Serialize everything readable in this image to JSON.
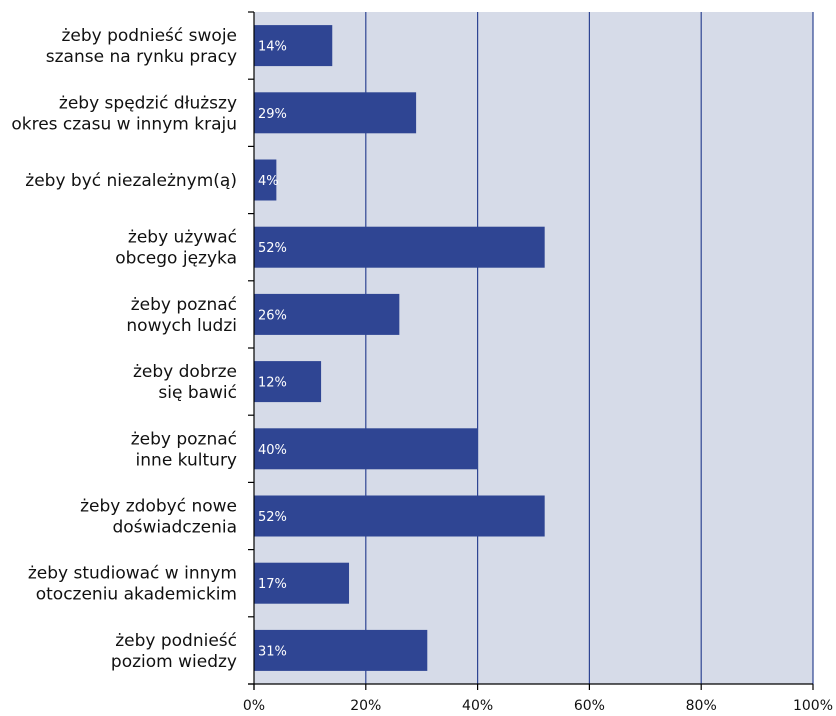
{
  "chart_data": {
    "type": "bar",
    "orientation": "horizontal",
    "categories": [
      [
        "żeby podnieść swoje",
        "szanse na rynku pracy"
      ],
      [
        "żeby spędzić dłuższy",
        "okres czasu w innym kraju"
      ],
      [
        "żeby być niezależnym(ą)"
      ],
      [
        "żeby używać",
        "obcego języka"
      ],
      [
        "żeby poznać",
        "nowych ludzi"
      ],
      [
        "żeby dobrze",
        "się bawić"
      ],
      [
        "żeby poznać",
        "inne kultury"
      ],
      [
        "żeby zdobyć nowe",
        "doświadczenia"
      ],
      [
        "żeby studiować w innym",
        "otoczeniu akademickim"
      ],
      [
        "żeby podnieść",
        "poziom wiedzy"
      ]
    ],
    "values": [
      14,
      29,
      4,
      52,
      26,
      12,
      40,
      52,
      17,
      31
    ],
    "data_labels": [
      "14%",
      "29%",
      "4%",
      "52%",
      "26%",
      "12%",
      "40%",
      "52%",
      "17%",
      "31%"
    ],
    "xlim": [
      0,
      100
    ],
    "x_ticks": [
      0,
      20,
      40,
      60,
      80,
      100
    ],
    "x_tick_labels": [
      "0%",
      "20%",
      "40%",
      "60%",
      "80%",
      "100%"
    ],
    "grid": "vertical",
    "legend": "none",
    "title": "",
    "xlabel": "",
    "ylabel": "",
    "colors": {
      "bar": "#2f4593",
      "plot_background": "#d6dbe8",
      "gridline": "#2f4593",
      "axis": "#000000",
      "bar_label": "#ffffff"
    }
  }
}
